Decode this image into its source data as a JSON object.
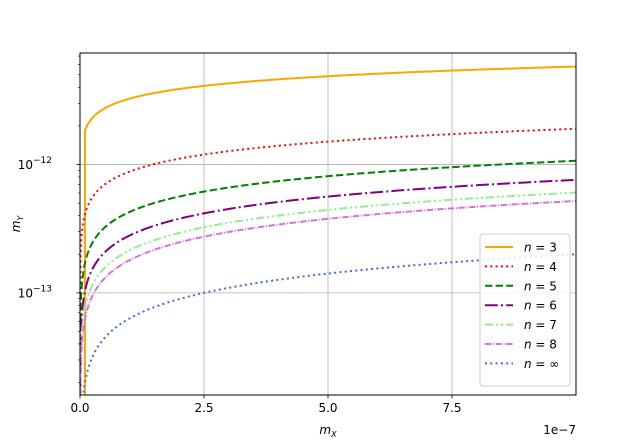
{
  "chart_data": {
    "type": "line",
    "xlabel": "m_X",
    "ylabel": "m_Y",
    "x_offset_label": "1e−7",
    "x_scale": "linear",
    "y_scale": "log",
    "xlim": [
      0,
      1e-07
    ],
    "ylim": [
      1.6e-14,
      7.4e-12
    ],
    "grid": true,
    "legend_position": "lower right",
    "x_ticks": [
      {
        "value": 0,
        "label": "0.0"
      },
      {
        "value": 2.5e-08,
        "label": "2.5"
      },
      {
        "value": 5e-08,
        "label": "5.0"
      },
      {
        "value": 7.5e-08,
        "label": "7.5"
      }
    ],
    "y_ticks": [
      {
        "value": 1e-13,
        "base": "10",
        "exp": "−13"
      },
      {
        "value": 1e-12,
        "base": "10",
        "exp": "−12"
      }
    ],
    "series": [
      {
        "name": "n = 3",
        "legend_n": "3",
        "color": "#ffa500",
        "dash": "solid",
        "x_min": 1e-09,
        "y_at_x_min": 1.8e-12,
        "y_at_x_max": 5.8e-12,
        "alpha": 0.25
      },
      {
        "name": "n = 4",
        "legend_n": "4",
        "color": "#ff0000",
        "dash": "dotted",
        "x_min": 1e-10,
        "y_at_x_min": 4e-13,
        "y_at_x_max": 1.9e-12,
        "alpha": 0.3333
      },
      {
        "name": "n = 5",
        "legend_n": "5",
        "color": "#008000",
        "dash": "dashed",
        "x_min": 1e-10,
        "y_at_x_min": 1.7e-13,
        "y_at_x_max": 1.07e-12,
        "alpha": 0.3988
      },
      {
        "name": "n = 6",
        "legend_n": "6",
        "color": "#800080",
        "dash": "dashdot",
        "x_min": 1e-10,
        "y_at_x_min": 9e-14,
        "y_at_x_max": 7.6e-13,
        "alpha": 0.4338
      },
      {
        "name": "n = 7",
        "legend_n": "7",
        "color": "#90ee90",
        "dash": "dashdotdot",
        "x_min": 1e-10,
        "y_at_x_min": 6e-14,
        "y_at_x_max": 6.05e-13,
        "alpha": 0.45
      },
      {
        "name": "n = 8",
        "legend_n": "8",
        "color": "#da70d6",
        "dash": "dashdot2",
        "x_min": 1e-10,
        "y_at_x_min": 4.8e-14,
        "y_at_x_max": 5.2e-13,
        "alpha": 0.4616
      },
      {
        "name": "n = ∞",
        "legend_n": "∞",
        "color": "#4169e1",
        "dash": "dotted",
        "x_min": 1e-10,
        "y_at_x_min": 1.6e-14,
        "y_at_x_max": 2e-13,
        "alpha": 0.5
      }
    ]
  }
}
